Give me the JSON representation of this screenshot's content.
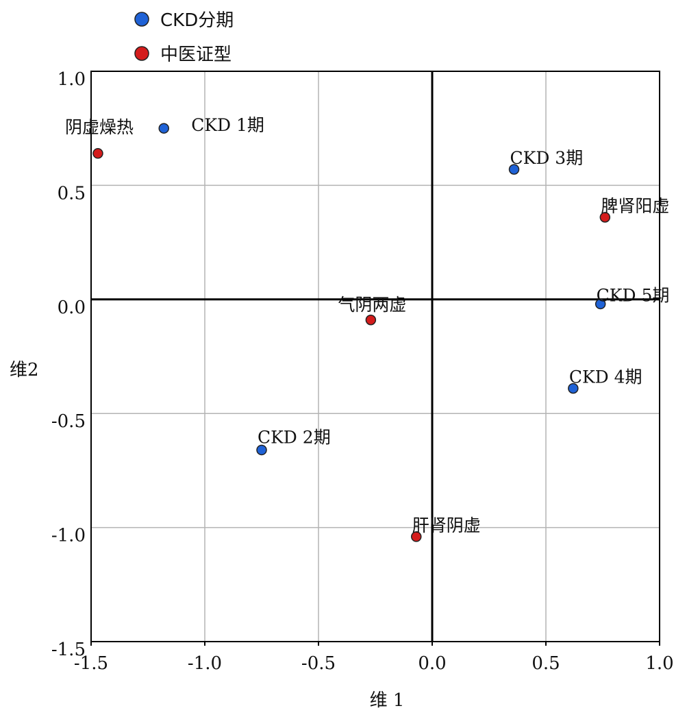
{
  "chart_data": {
    "type": "scatter",
    "title": "",
    "xlabel": "维 1",
    "ylabel": "维2",
    "xlim": [
      -1.5,
      1.0
    ],
    "ylim": [
      -1.5,
      1.0
    ],
    "x_ticks": [
      "-1.5",
      "-1.0",
      "-0.5",
      "0.0",
      "0.5",
      "1.0"
    ],
    "x_tick_values": [
      -1.5,
      -1.0,
      -0.5,
      0.0,
      0.5,
      1.0
    ],
    "y_ticks": [
      "1.0",
      "0.5",
      "0.0",
      "-0.5",
      "-1.0",
      "-1.5"
    ],
    "y_tick_values": [
      1.0,
      0.5,
      0.0,
      -0.5,
      -1.0,
      -1.5
    ],
    "grid": true,
    "legend_position": "top-left",
    "series": [
      {
        "name": "CKD分期",
        "color": "#1f62d6",
        "points": [
          {
            "label": "CKD 1期",
            "x": -1.18,
            "y": 0.75
          },
          {
            "label": "CKD 2期",
            "x": -0.75,
            "y": -0.66
          },
          {
            "label": "CKD 3期",
            "x": 0.36,
            "y": 0.57
          },
          {
            "label": "CKD 4期",
            "x": 0.62,
            "y": -0.39
          },
          {
            "label": "CKD 5期",
            "x": 0.74,
            "y": -0.02
          }
        ]
      },
      {
        "name": "中医证型",
        "color": "#d41c1c",
        "points": [
          {
            "label": "阴虚燥热",
            "x": -1.47,
            "y": 0.64
          },
          {
            "label": "气阴两虚",
            "x": -0.27,
            "y": -0.09
          },
          {
            "label": "脾肾阳虚",
            "x": 0.76,
            "y": 0.36
          },
          {
            "label": "肝肾阴虚",
            "x": -0.07,
            "y": -1.04
          }
        ]
      }
    ]
  }
}
